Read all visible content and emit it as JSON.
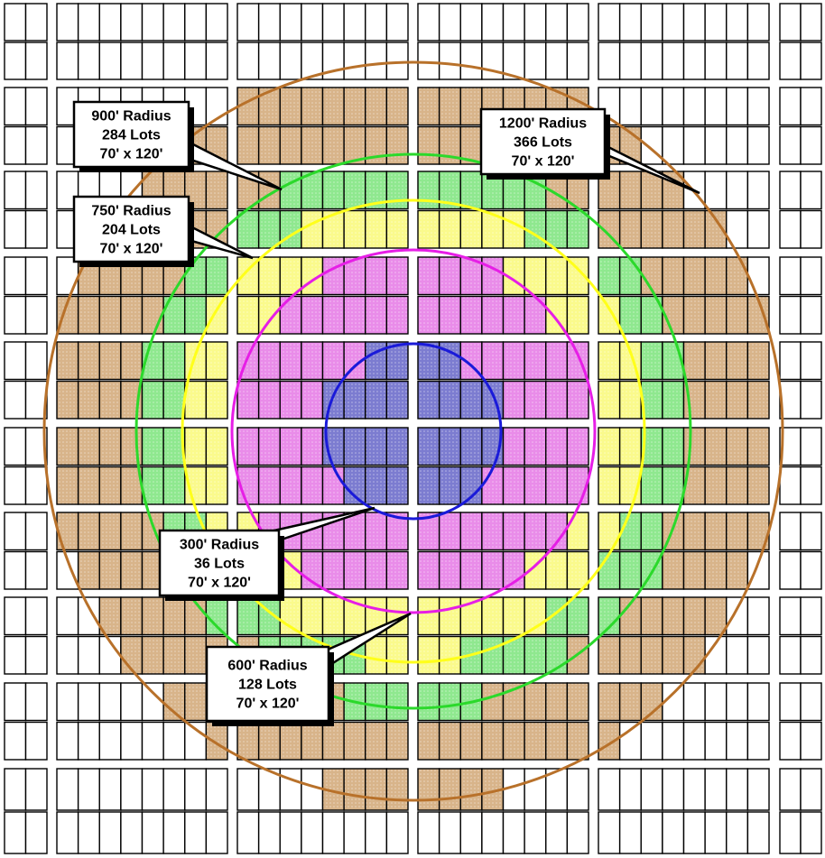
{
  "colors": {
    "lot_outline": "#000000",
    "lot_fill_default": "#ffffff",
    "radius_1200": "#b8712a",
    "radius_900": "#2bd92b",
    "radius_750": "#ffff1a",
    "radius_600": "#e61ee6",
    "radius_300": "#1a1ad9",
    "zone_1200_fill": "#d8b48a",
    "zone_900_fill": "#8fe88f",
    "zone_750_fill": "#fafa8c",
    "zone_600_fill": "#e98ce9",
    "zone_300_fill": "#7c7cd0",
    "callout_fill": "#ffffff",
    "callout_shadow": "#000000"
  },
  "callouts": [
    {
      "id": "radius-900",
      "lines": [
        "900' Radius",
        "284 Lots",
        "70' x 120'"
      ]
    },
    {
      "id": "radius-1200",
      "lines": [
        "1200' Radius",
        "366 Lots",
        "70' x 120'"
      ]
    },
    {
      "id": "radius-750",
      "lines": [
        "750' Radius",
        "204 Lots",
        "70' x 120'"
      ]
    },
    {
      "id": "radius-300",
      "lines": [
        "300' Radius",
        "36 Lots",
        "70' x 120'"
      ]
    },
    {
      "id": "radius-600",
      "lines": [
        "600' Radius",
        "128 Lots",
        "70' x 120'"
      ]
    }
  ]
}
